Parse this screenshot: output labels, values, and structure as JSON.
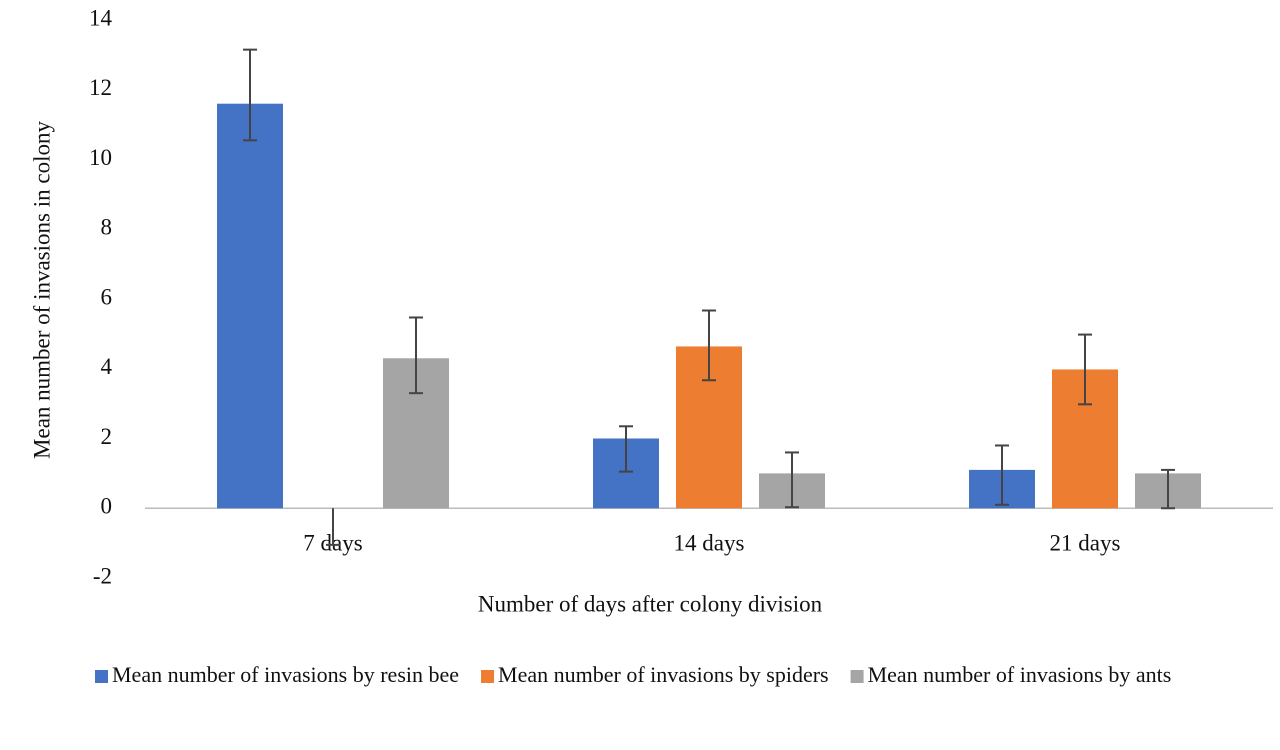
{
  "chart_data": {
    "type": "bar",
    "y_label": "Mean number of invasions in colony",
    "x_label": "Number of days after colony division",
    "categories": [
      "7 days",
      "14 days",
      "21 days"
    ],
    "series": [
      {
        "name": "Mean number of invasions by resin bee",
        "color": "#4472c4",
        "values": [
          11.6,
          2.0,
          1.1
        ],
        "errors_minus": [
          1.05,
          0.95,
          1.0
        ],
        "errors_plus": [
          1.55,
          0.35,
          0.7
        ]
      },
      {
        "name": "Mean number of invasions by spiders",
        "color": "#ed7d31",
        "values": [
          0,
          4.64,
          3.98
        ],
        "errors_minus": [
          1.05,
          0.97,
          1.0
        ],
        "errors_plus": [
          0,
          1.03,
          1.0
        ]
      },
      {
        "name": "Mean number of invasions by ants",
        "color": "#a5a5a5",
        "values": [
          4.3,
          1.0,
          1.0
        ],
        "errors_minus": [
          1.0,
          0.97,
          1.0
        ],
        "errors_plus": [
          1.17,
          0.6,
          0.1
        ]
      }
    ],
    "ylim": [
      -2,
      14
    ],
    "yticks": [
      -2,
      0,
      2,
      4,
      6,
      8,
      10,
      12,
      14
    ],
    "grid": false,
    "legend": "bottom"
  }
}
